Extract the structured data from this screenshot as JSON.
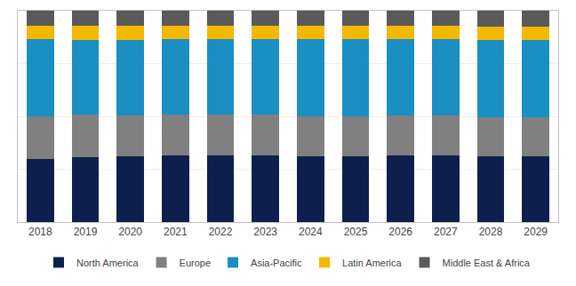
{
  "chart_data": {
    "type": "bar",
    "stacked": true,
    "categories": [
      "2018",
      "2019",
      "2020",
      "2021",
      "2022",
      "2023",
      "2024",
      "2025",
      "2026",
      "2027",
      "2028",
      "2029"
    ],
    "series": [
      {
        "name": "North America",
        "color": "#0d1f4c",
        "values": [
          30.0,
          30.5,
          31.0,
          31.5,
          31.5,
          31.5,
          31.0,
          31.0,
          31.5,
          31.5,
          31.0,
          31.0
        ]
      },
      {
        "name": "Europe",
        "color": "#808080",
        "values": [
          20.0,
          20.5,
          19.5,
          19.5,
          19.5,
          19.5,
          19.0,
          19.0,
          19.0,
          19.0,
          18.5,
          18.5
        ]
      },
      {
        "name": "Asia-Pacific",
        "color": "#1a8fc1",
        "values": [
          36.5,
          35.0,
          35.5,
          35.5,
          35.5,
          35.5,
          36.5,
          36.5,
          36.0,
          36.0,
          36.5,
          36.5
        ]
      },
      {
        "name": "Latin America",
        "color": "#f5b800",
        "values": [
          6.5,
          7.0,
          7.0,
          6.5,
          6.5,
          6.5,
          6.5,
          6.5,
          6.5,
          6.5,
          6.5,
          6.5
        ]
      },
      {
        "name": "Middle East & Africa",
        "color": "#5a5a5a",
        "values": [
          7.0,
          7.0,
          7.0,
          7.0,
          7.0,
          7.0,
          7.0,
          7.0,
          7.0,
          7.0,
          7.5,
          7.5
        ]
      }
    ],
    "ylim": [
      0,
      100
    ],
    "yticks": [
      0,
      25,
      50,
      75,
      100
    ],
    "grid": true,
    "legend": "bottom",
    "tick_labels": "x"
  }
}
